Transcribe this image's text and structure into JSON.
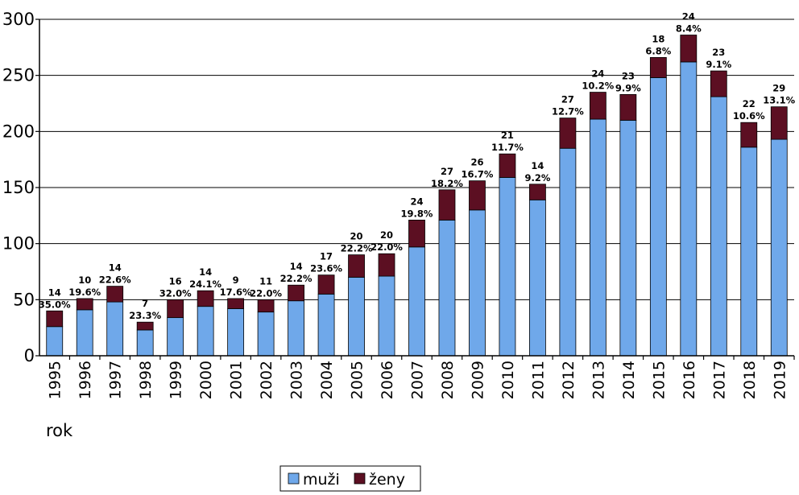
{
  "chart_data": {
    "type": "bar",
    "stacked": true,
    "xlabel": "rok",
    "ylim": [
      0,
      300
    ],
    "yticks": [
      0,
      50,
      100,
      150,
      200,
      250,
      300
    ],
    "grid": true,
    "legend_position": "bottom",
    "categories": [
      "1995",
      "1996",
      "1997",
      "1998",
      "1999",
      "2000",
      "2001",
      "2002",
      "2003",
      "2004",
      "2005",
      "2006",
      "2007",
      "2008",
      "2009",
      "2010",
      "2011",
      "2012",
      "2013",
      "2014",
      "2015",
      "2016",
      "2017",
      "2018",
      "2019"
    ],
    "series": [
      {
        "name": "muži",
        "color": "#6fa8ea",
        "values": [
          26,
          41,
          48,
          23,
          34,
          44,
          42,
          39,
          49,
          55,
          70,
          71,
          97,
          121,
          130,
          159,
          139,
          185,
          211,
          210,
          248,
          262,
          231,
          186,
          193
        ]
      },
      {
        "name": "ženy",
        "color": "#5c0f22",
        "values": [
          14,
          10,
          14,
          7,
          16,
          14,
          9,
          11,
          14,
          17,
          20,
          20,
          24,
          27,
          26,
          21,
          14,
          27,
          24,
          23,
          18,
          24,
          23,
          22,
          29
        ]
      }
    ],
    "percent_labels": [
      "35.0%",
      "19.6%",
      "22.6%",
      "23.3%",
      "32.0%",
      "24.1%",
      "17.6%",
      "22.0%",
      "22.2%",
      "23.6%",
      "22.2%",
      "22.0%",
      "19.8%",
      "18.2%",
      "16.7%",
      "11.7%",
      "9.2%",
      "12.7%",
      "10.2%",
      "9.9%",
      "6.8%",
      "8.4%",
      "9.1%",
      "10.6%",
      "13.1%"
    ]
  }
}
